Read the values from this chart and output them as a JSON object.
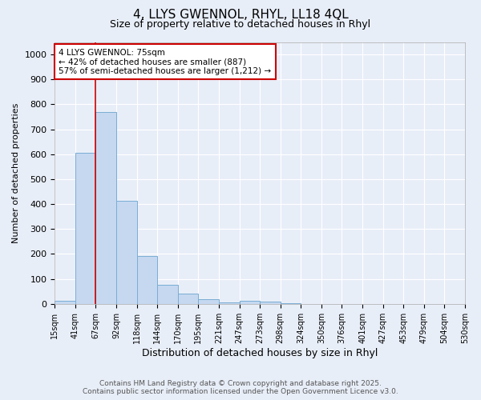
{
  "title_line1": "4, LLYS GWENNOL, RHYL, LL18 4QL",
  "title_line2": "Size of property relative to detached houses in Rhyl",
  "xlabel": "Distribution of detached houses by size in Rhyl",
  "ylabel": "Number of detached properties",
  "bins": [
    "15sqm",
    "41sqm",
    "67sqm",
    "92sqm",
    "118sqm",
    "144sqm",
    "170sqm",
    "195sqm",
    "221sqm",
    "247sqm",
    "273sqm",
    "298sqm",
    "324sqm",
    "350sqm",
    "376sqm",
    "401sqm",
    "427sqm",
    "453sqm",
    "479sqm",
    "504sqm",
    "530sqm"
  ],
  "values": [
    13,
    607,
    770,
    412,
    193,
    75,
    40,
    18,
    5,
    12,
    10,
    4,
    0,
    0,
    0,
    0,
    0,
    0,
    0,
    0
  ],
  "bar_color": "#c5d8f0",
  "bar_edge_color": "#7aadd4",
  "red_line_x": 2,
  "red_line_color": "#cc0000",
  "annotation_text": "4 LLYS GWENNOL: 75sqm\n← 42% of detached houses are smaller (887)\n57% of semi-detached houses are larger (1,212) →",
  "annotation_box_color": "#ffffff",
  "annotation_box_edge": "#cc0000",
  "ylim": [
    0,
    1050
  ],
  "yticks": [
    0,
    100,
    200,
    300,
    400,
    500,
    600,
    700,
    800,
    900,
    1000
  ],
  "footer_line1": "Contains HM Land Registry data © Crown copyright and database right 2025.",
  "footer_line2": "Contains public sector information licensed under the Open Government Licence v3.0.",
  "bg_color": "#e8eef8",
  "plot_bg_color": "#e8eef8",
  "grid_color": "#ffffff",
  "title1_fontsize": 11,
  "title2_fontsize": 9,
  "ylabel_fontsize": 8,
  "xlabel_fontsize": 9,
  "tick_fontsize": 7,
  "annot_fontsize": 7.5,
  "footer_fontsize": 6.5
}
